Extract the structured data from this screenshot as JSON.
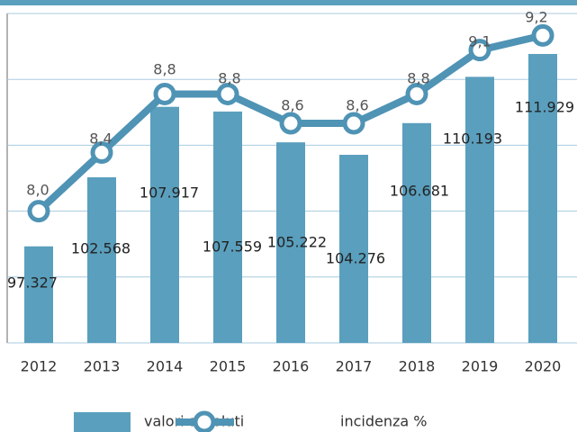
{
  "chart_data": {
    "type": "bar+line",
    "categories": [
      "2012",
      "2013",
      "2014",
      "2015",
      "2016",
      "2017",
      "2018",
      "2019",
      "2020"
    ],
    "series": [
      {
        "name": "valori assoluti",
        "type": "bar",
        "color": "#5a9fbd",
        "values": [
          97327,
          102568,
          107917,
          107559,
          105222,
          104276,
          106681,
          110193,
          111929
        ],
        "value_labels": [
          "97.327",
          "102.568",
          "107.917",
          "107.559",
          "105.222",
          "104.276",
          "106.681",
          "110.193",
          "111.929"
        ]
      },
      {
        "name": "incidenza %",
        "type": "line",
        "axis": "y2",
        "color": "#4f93b5",
        "values": [
          8.0,
          8.4,
          8.8,
          8.8,
          8.6,
          8.6,
          8.8,
          9.1,
          9.2
        ],
        "value_labels": [
          "8,0",
          "8,4",
          "8,8",
          "8,8",
          "8,6",
          "8,6",
          "8,8",
          "9,1",
          "9,2"
        ]
      }
    ],
    "ylim": [
      90000,
      115000
    ],
    "y2lim": [
      7.1,
      9.35
    ],
    "grid": true
  }
}
